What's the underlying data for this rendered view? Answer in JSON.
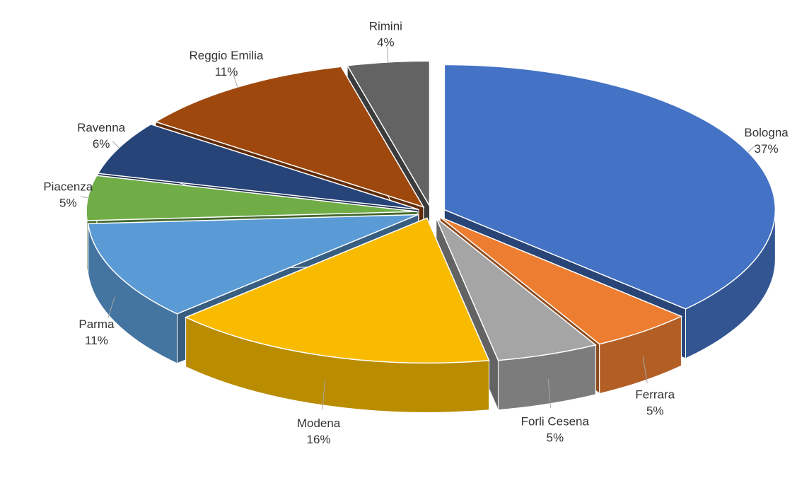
{
  "chart_data": {
    "type": "pie",
    "categories": [
      "Bologna",
      "Ferrara",
      "Forli Cesena",
      "Modena",
      "Parma",
      "Piacenza",
      "Ravenna",
      "Reggio Emilia",
      "Rimini"
    ],
    "values": [
      37,
      5,
      5,
      16,
      11,
      5,
      6,
      11,
      4
    ],
    "value_labels": [
      "37%",
      "5%",
      "5%",
      "16%",
      "11%",
      "5%",
      "6%",
      "11%",
      "4%"
    ],
    "colors": [
      "#4472c4",
      "#ed7d31",
      "#a5a5a5",
      "#f8bb00",
      "#5b9bd5",
      "#70ad47",
      "#264478",
      "#9e480e",
      "#636363"
    ]
  }
}
